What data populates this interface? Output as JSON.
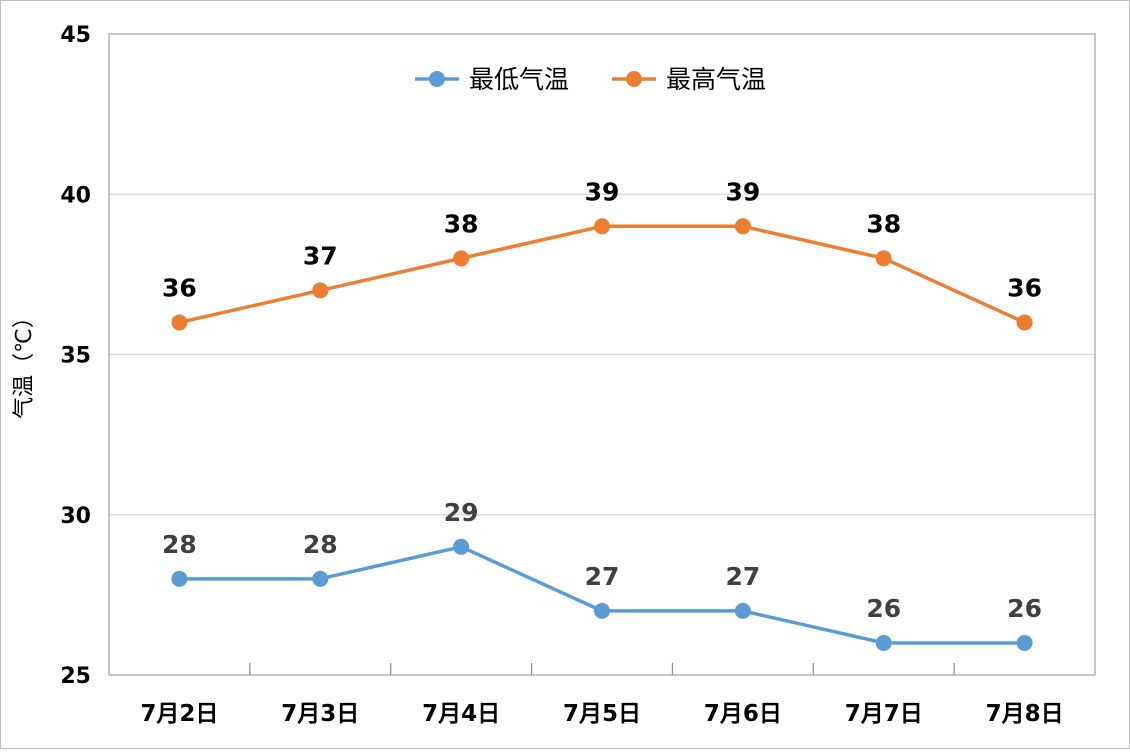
{
  "chart_data": {
    "type": "line",
    "title": "",
    "xlabel": "",
    "ylabel": "气温（℃）",
    "categories": [
      "7月2日",
      "7月3日",
      "7月4日",
      "7月5日",
      "7月6日",
      "7月7日",
      "7月8日"
    ],
    "ylim": [
      25,
      45
    ],
    "yticks": [
      25,
      30,
      35,
      40,
      45
    ],
    "grid": true,
    "legend_position": "top-center",
    "series": [
      {
        "name": "最低气温",
        "color": "#5B9BD5",
        "label_color": "#404040",
        "values": [
          28,
          28,
          29,
          27,
          27,
          26,
          26
        ]
      },
      {
        "name": "最高气温",
        "color": "#ED7D31",
        "label_color": "#000000",
        "values": [
          36,
          37,
          38,
          39,
          39,
          38,
          36
        ]
      }
    ]
  }
}
